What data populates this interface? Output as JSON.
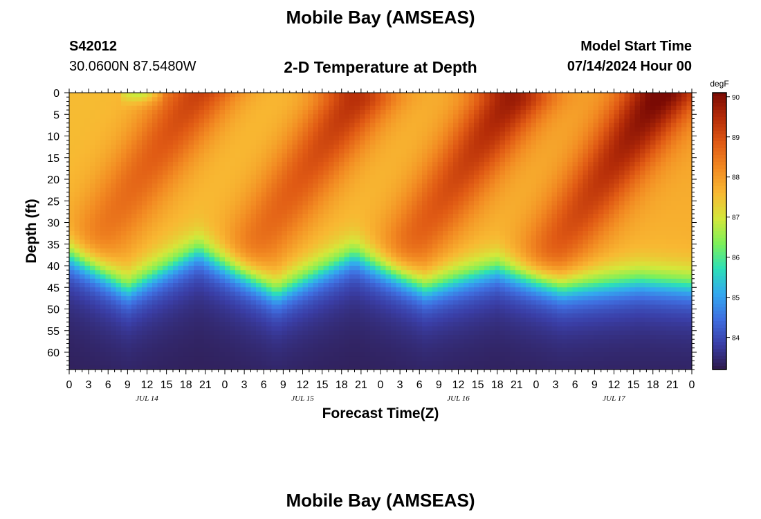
{
  "header": {
    "title": "Mobile Bay (AMSEAS)",
    "station_id": "S42012",
    "coordinates": "30.0600N  87.5480W",
    "subtitle": "2-D Temperature at Depth",
    "model_start_label": "Model Start Time",
    "model_start_value": "07/14/2024 Hour 00"
  },
  "footer": {
    "title": "Mobile Bay (AMSEAS)"
  },
  "chart_data": {
    "type": "heatmap",
    "xlabel": "Forecast Time(Z)",
    "ylabel": "Depth (ft)",
    "x_unit": "hours since model start (07/14/2024 00Z)",
    "xlim": [
      0,
      96
    ],
    "ylim": [
      0,
      64
    ],
    "y_inverted": true,
    "x_ticks": [
      0,
      3,
      6,
      9,
      12,
      15,
      18,
      21,
      24,
      27,
      30,
      33,
      36,
      39,
      42,
      45,
      48,
      51,
      54,
      57,
      60,
      63,
      66,
      69,
      72,
      75,
      78,
      81,
      84,
      87,
      90,
      93,
      96
    ],
    "x_tick_labels": [
      "0",
      "3",
      "6",
      "9",
      "12",
      "15",
      "18",
      "21",
      "0",
      "3",
      "6",
      "9",
      "12",
      "15",
      "18",
      "21",
      "0",
      "3",
      "6",
      "9",
      "12",
      "15",
      "18",
      "21",
      "0",
      "3",
      "6",
      "9",
      "12",
      "15",
      "18",
      "21",
      "0"
    ],
    "date_labels": [
      {
        "label": "JUL 14",
        "at": 12
      },
      {
        "label": "JUL 15",
        "at": 36
      },
      {
        "label": "JUL 16",
        "at": 60
      },
      {
        "label": "JUL 17",
        "at": 84
      }
    ],
    "y_ticks": [
      0,
      5,
      10,
      15,
      20,
      25,
      30,
      35,
      40,
      45,
      50,
      55,
      60
    ],
    "y_tick_labels": [
      "0",
      "5",
      "10",
      "15",
      "20",
      "25",
      "30",
      "35",
      "40",
      "45",
      "50",
      "55",
      "60"
    ],
    "colorbar": {
      "unit": "degF",
      "range": [
        83.2,
        90.1
      ],
      "tick_values": [
        84,
        85,
        86,
        87,
        88,
        89,
        90
      ],
      "tick_labels": [
        "84",
        "85",
        "86",
        "87",
        "88",
        "89",
        "90"
      ],
      "colors": [
        "#2e1a4a",
        "#3a3ea6",
        "#3f6ee0",
        "#33a8f0",
        "#2ce0b8",
        "#7df05a",
        "#d4e83a",
        "#f8b832",
        "#f28a22",
        "#e05a14",
        "#b52c08",
        "#7a0a04"
      ]
    },
    "thermocline_depth_ft": {
      "x": [
        0,
        9,
        20,
        32,
        44,
        55,
        66,
        76,
        88,
        96
      ],
      "values": [
        36,
        44,
        35,
        45,
        36,
        44,
        39,
        44,
        42,
        43
      ]
    },
    "warm_layer_peaks_degF": [
      {
        "x": 20,
        "depth_ft": 0,
        "value": 89.2
      },
      {
        "x": 44,
        "depth_ft": 2,
        "value": 89.4
      },
      {
        "x": 68,
        "depth_ft": 2,
        "value": 89.6
      },
      {
        "x": 91,
        "depth_ft": 1,
        "value": 89.9
      }
    ],
    "bottom_value_degF": 83.3,
    "grid": false
  }
}
